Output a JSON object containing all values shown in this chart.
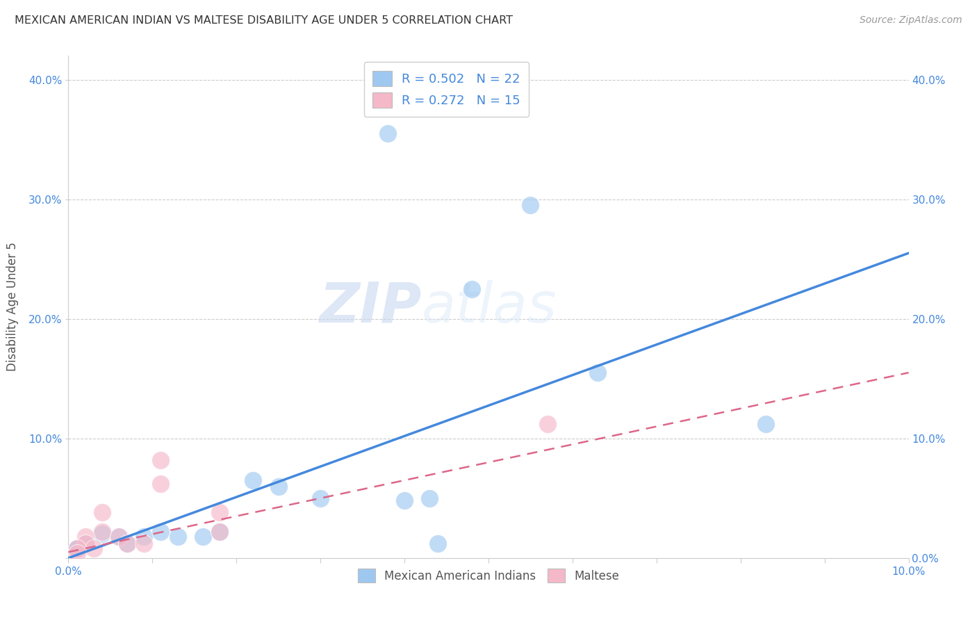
{
  "title": "MEXICAN AMERICAN INDIAN VS MALTESE DISABILITY AGE UNDER 5 CORRELATION CHART",
  "source": "Source: ZipAtlas.com",
  "ylabel": "Disability Age Under 5",
  "xlabel": "",
  "xlim": [
    0.0,
    0.1
  ],
  "ylim": [
    0.0,
    0.42
  ],
  "xtick_labels": [
    "0.0%",
    "",
    "",
    "",
    "",
    "",
    "",
    "",
    "",
    "",
    "10.0%"
  ],
  "xtick_values": [
    0.0,
    0.01,
    0.02,
    0.03,
    0.04,
    0.05,
    0.06,
    0.07,
    0.08,
    0.09,
    0.1
  ],
  "ytick_labels": [
    "",
    "10.0%",
    "20.0%",
    "30.0%",
    "40.0%"
  ],
  "ytick_values": [
    0.0,
    0.1,
    0.2,
    0.3,
    0.4
  ],
  "right_ytick_labels": [
    "0.0%",
    "10.0%",
    "20.0%",
    "30.0%",
    "40.0%"
  ],
  "background_color": "#ffffff",
  "grid_color": "#cccccc",
  "blue_color": "#9ec8f0",
  "pink_color": "#f5b8c8",
  "blue_line_color": "#4488dd",
  "pink_line_color": "#dd6688",
  "tick_color": "#4488dd",
  "legend_R1": "0.502",
  "legend_N1": "22",
  "legend_R2": "0.272",
  "legend_N2": "15",
  "watermark_zip": "ZIP",
  "watermark_atlas": "atlas",
  "blue_dots_x": [
    0.038,
    0.055,
    0.048,
    0.063,
    0.022,
    0.025,
    0.03,
    0.004,
    0.006,
    0.007,
    0.009,
    0.011,
    0.013,
    0.016,
    0.018,
    0.001,
    0.002,
    0.001,
    0.04,
    0.043,
    0.044,
    0.083
  ],
  "blue_dots_y": [
    0.355,
    0.295,
    0.225,
    0.155,
    0.065,
    0.06,
    0.05,
    0.02,
    0.018,
    0.012,
    0.018,
    0.022,
    0.018,
    0.018,
    0.022,
    0.008,
    0.012,
    0.008,
    0.048,
    0.05,
    0.012,
    0.112
  ],
  "pink_dots_x": [
    0.011,
    0.011,
    0.004,
    0.004,
    0.006,
    0.007,
    0.009,
    0.018,
    0.018,
    0.002,
    0.002,
    0.003,
    0.001,
    0.001,
    0.057
  ],
  "pink_dots_y": [
    0.082,
    0.062,
    0.038,
    0.022,
    0.018,
    0.012,
    0.012,
    0.038,
    0.022,
    0.018,
    0.012,
    0.008,
    0.008,
    0.004,
    0.112
  ],
  "blue_line_x": [
    0.0,
    0.1
  ],
  "blue_line_y": [
    0.0,
    0.255
  ],
  "pink_line_x": [
    0.0,
    0.1
  ],
  "pink_line_y": [
    0.005,
    0.155
  ]
}
